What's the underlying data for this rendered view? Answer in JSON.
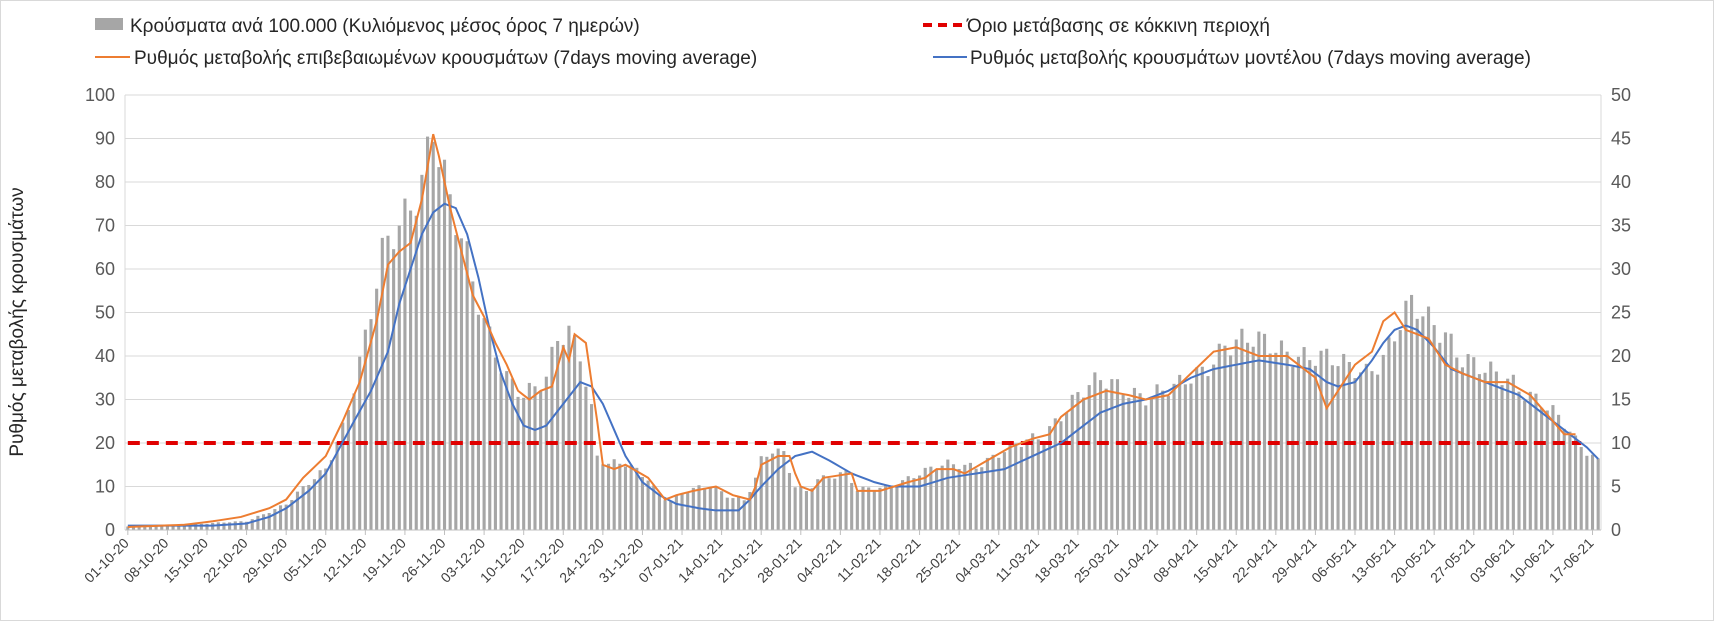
{
  "chart_data": {
    "type": "bar+line",
    "legend": {
      "bars": "Κρούσματα ανά 100.000 (Κυλιόμενος μέσος όρος 7 ημερών)",
      "threshold": "Όριο μετάβασης σε κόκκινη περιοχή",
      "confirmed": "Ρυθμός μεταβολής επιβεβαιωμένων κρουσμάτων (7days moving average)",
      "model": "Ρυθμός μεταβολής κρουσμάτων μοντέλου (7days moving average)"
    },
    "ylabel": "Ρυθμός μεταβολής κρουσμάτων",
    "ylim_left": [
      0,
      100
    ],
    "yticks_left": [
      "0",
      "10",
      "20",
      "30",
      "40",
      "50",
      "60",
      "70",
      "80",
      "90",
      "100"
    ],
    "ylim_right": [
      0,
      50
    ],
    "yticks_right": [
      "0",
      "5",
      "10",
      "15",
      "20",
      "25",
      "30",
      "35",
      "40",
      "45",
      "50"
    ],
    "xtick_labels": [
      "01-10-20",
      "08-10-20",
      "15-10-20",
      "22-10-20",
      "29-10-20",
      "05-11-20",
      "12-11-20",
      "19-11-20",
      "26-11-20",
      "03-12-20",
      "10-12-20",
      "17-12-20",
      "24-12-20",
      "31-12-20",
      "07-01-21",
      "14-01-21",
      "21-01-21",
      "28-01-21",
      "04-02-21",
      "11-02-21",
      "18-02-21",
      "25-02-21",
      "04-03-21",
      "11-03-21",
      "18-03-21",
      "25-03-21",
      "01-04-21",
      "08-04-21",
      "15-04-21",
      "22-04-21",
      "29-04-21",
      "06-05-21",
      "13-05-21",
      "20-05-21",
      "27-05-21",
      "03-06-21",
      "10-06-21",
      "17-06-21"
    ],
    "grid": true,
    "legend_position": "top",
    "threshold_value": 20,
    "colors": {
      "bars": "#a6a6a6",
      "threshold": "#e00000",
      "confirmed": "#ed7d31",
      "model": "#4472c4"
    },
    "days": 261,
    "bars_keyframes": [
      [
        0,
        0.8
      ],
      [
        7,
        1.2
      ],
      [
        14,
        1.5
      ],
      [
        21,
        2
      ],
      [
        28,
        6
      ],
      [
        35,
        14
      ],
      [
        38,
        24
      ],
      [
        42,
        44
      ],
      [
        45,
        62
      ],
      [
        49,
        72
      ],
      [
        52,
        82
      ],
      [
        54,
        95
      ],
      [
        55,
        88
      ],
      [
        57,
        74
      ],
      [
        59,
        66
      ],
      [
        61,
        56
      ],
      [
        63,
        48
      ],
      [
        65,
        42
      ],
      [
        67,
        36
      ],
      [
        70,
        31
      ],
      [
        72,
        32
      ],
      [
        74,
        34
      ],
      [
        76,
        44
      ],
      [
        78,
        46
      ],
      [
        80,
        42
      ],
      [
        82,
        28
      ],
      [
        83,
        17
      ],
      [
        85,
        15
      ],
      [
        88,
        15
      ],
      [
        92,
        12
      ],
      [
        94,
        8
      ],
      [
        96,
        7
      ],
      [
        99,
        9
      ],
      [
        103,
        10
      ],
      [
        106,
        8
      ],
      [
        109,
        7
      ],
      [
        111,
        12
      ],
      [
        112,
        16
      ],
      [
        114,
        18
      ],
      [
        116,
        17
      ],
      [
        118,
        10
      ],
      [
        120,
        9
      ],
      [
        122,
        12
      ],
      [
        127,
        13
      ],
      [
        129,
        9
      ],
      [
        134,
        10
      ],
      [
        140,
        13
      ],
      [
        145,
        15
      ],
      [
        150,
        15
      ],
      [
        155,
        18
      ],
      [
        162,
        22
      ],
      [
        165,
        27
      ],
      [
        168,
        31
      ],
      [
        172,
        34
      ],
      [
        176,
        33
      ],
      [
        180,
        31
      ],
      [
        185,
        32
      ],
      [
        190,
        37
      ],
      [
        194,
        43
      ],
      [
        199,
        43
      ],
      [
        204,
        42
      ],
      [
        209,
        40
      ],
      [
        214,
        38
      ],
      [
        219,
        37
      ],
      [
        222,
        40
      ],
      [
        225,
        47
      ],
      [
        227,
        51
      ],
      [
        229,
        49
      ],
      [
        233,
        46
      ],
      [
        236,
        40
      ],
      [
        240,
        36
      ],
      [
        245,
        34
      ],
      [
        250,
        30
      ],
      [
        254,
        24
      ],
      [
        256,
        20
      ],
      [
        258,
        18
      ],
      [
        260,
        16
      ]
    ],
    "confirmed_keyframes": [
      [
        0,
        0.7
      ],
      [
        10,
        1.2
      ],
      [
        15,
        2
      ],
      [
        20,
        3
      ],
      [
        25,
        5
      ],
      [
        28,
        7
      ],
      [
        31,
        12
      ],
      [
        35,
        17
      ],
      [
        38,
        25
      ],
      [
        41,
        34
      ],
      [
        44,
        48
      ],
      [
        46,
        61
      ],
      [
        48,
        64
      ],
      [
        50,
        66
      ],
      [
        52,
        76
      ],
      [
        54,
        91
      ],
      [
        55,
        86
      ],
      [
        57,
        74
      ],
      [
        59,
        64
      ],
      [
        61,
        54
      ],
      [
        63,
        49
      ],
      [
        65,
        43
      ],
      [
        67,
        38
      ],
      [
        69,
        32
      ],
      [
        71,
        30
      ],
      [
        73,
        32
      ],
      [
        75,
        33
      ],
      [
        77,
        42
      ],
      [
        78,
        39
      ],
      [
        79,
        45
      ],
      [
        81,
        43
      ],
      [
        82,
        34
      ],
      [
        83,
        25
      ],
      [
        84,
        15
      ],
      [
        86,
        14
      ],
      [
        88,
        15
      ],
      [
        92,
        12
      ],
      [
        95,
        7
      ],
      [
        97,
        8
      ],
      [
        100,
        9
      ],
      [
        104,
        10
      ],
      [
        107,
        8
      ],
      [
        110,
        7
      ],
      [
        111,
        10
      ],
      [
        112,
        15
      ],
      [
        115,
        17
      ],
      [
        117,
        17
      ],
      [
        118,
        13
      ],
      [
        119,
        10
      ],
      [
        121,
        9
      ],
      [
        123,
        12
      ],
      [
        128,
        13
      ],
      [
        129,
        9
      ],
      [
        133,
        9
      ],
      [
        138,
        11
      ],
      [
        141,
        12
      ],
      [
        143,
        14
      ],
      [
        146,
        14
      ],
      [
        148,
        13
      ],
      [
        152,
        16
      ],
      [
        156,
        19
      ],
      [
        160,
        21
      ],
      [
        163,
        22
      ],
      [
        165,
        26
      ],
      [
        169,
        30
      ],
      [
        173,
        32
      ],
      [
        177,
        31
      ],
      [
        180,
        30
      ],
      [
        184,
        31
      ],
      [
        188,
        36
      ],
      [
        192,
        41
      ],
      [
        196,
        42
      ],
      [
        200,
        40
      ],
      [
        205,
        40
      ],
      [
        208,
        37
      ],
      [
        210,
        35
      ],
      [
        212,
        28
      ],
      [
        214,
        32
      ],
      [
        217,
        38
      ],
      [
        220,
        41
      ],
      [
        222,
        48
      ],
      [
        224,
        50
      ],
      [
        226,
        46
      ],
      [
        230,
        44
      ],
      [
        233,
        38
      ],
      [
        236,
        36
      ],
      [
        240,
        34
      ],
      [
        244,
        34
      ],
      [
        248,
        31
      ],
      [
        250,
        28
      ],
      [
        252,
        25
      ],
      [
        254,
        22
      ],
      [
        256,
        22
      ]
    ],
    "model_keyframes": [
      [
        0,
        1
      ],
      [
        15,
        1
      ],
      [
        21,
        1.5
      ],
      [
        25,
        3
      ],
      [
        28,
        5
      ],
      [
        32,
        9
      ],
      [
        35,
        13
      ],
      [
        40,
        25
      ],
      [
        43,
        32
      ],
      [
        46,
        41
      ],
      [
        48,
        52
      ],
      [
        50,
        60
      ],
      [
        52,
        68
      ],
      [
        54,
        73
      ],
      [
        56,
        75
      ],
      [
        58,
        74
      ],
      [
        60,
        68
      ],
      [
        62,
        58
      ],
      [
        64,
        46
      ],
      [
        66,
        36
      ],
      [
        68,
        29
      ],
      [
        70,
        24
      ],
      [
        72,
        23
      ],
      [
        74,
        24
      ],
      [
        77,
        29
      ],
      [
        80,
        34
      ],
      [
        82,
        33
      ],
      [
        84,
        29
      ],
      [
        86,
        23
      ],
      [
        88,
        17
      ],
      [
        91,
        11
      ],
      [
        94,
        8
      ],
      [
        97,
        6
      ],
      [
        101,
        5
      ],
      [
        104,
        4.5
      ],
      [
        108,
        4.5
      ],
      [
        110,
        7
      ],
      [
        112,
        10
      ],
      [
        115,
        14
      ],
      [
        118,
        17
      ],
      [
        121,
        18
      ],
      [
        124,
        16
      ],
      [
        128,
        13
      ],
      [
        132,
        11
      ],
      [
        135,
        10
      ],
      [
        140,
        10
      ],
      [
        145,
        12
      ],
      [
        150,
        13
      ],
      [
        155,
        14
      ],
      [
        160,
        17
      ],
      [
        165,
        20
      ],
      [
        168,
        23
      ],
      [
        172,
        27
      ],
      [
        176,
        29
      ],
      [
        180,
        30
      ],
      [
        184,
        32
      ],
      [
        188,
        35
      ],
      [
        192,
        37
      ],
      [
        196,
        38
      ],
      [
        200,
        39
      ],
      [
        205,
        38
      ],
      [
        209,
        37
      ],
      [
        212,
        34
      ],
      [
        214,
        33
      ],
      [
        217,
        34
      ],
      [
        220,
        39
      ],
      [
        222,
        43
      ],
      [
        224,
        46
      ],
      [
        226,
        47
      ],
      [
        228,
        46
      ],
      [
        231,
        42
      ],
      [
        234,
        37
      ],
      [
        238,
        35
      ],
      [
        242,
        33
      ],
      [
        246,
        31
      ],
      [
        250,
        27
      ],
      [
        254,
        23
      ],
      [
        258,
        19
      ],
      [
        261,
        15
      ]
    ]
  }
}
